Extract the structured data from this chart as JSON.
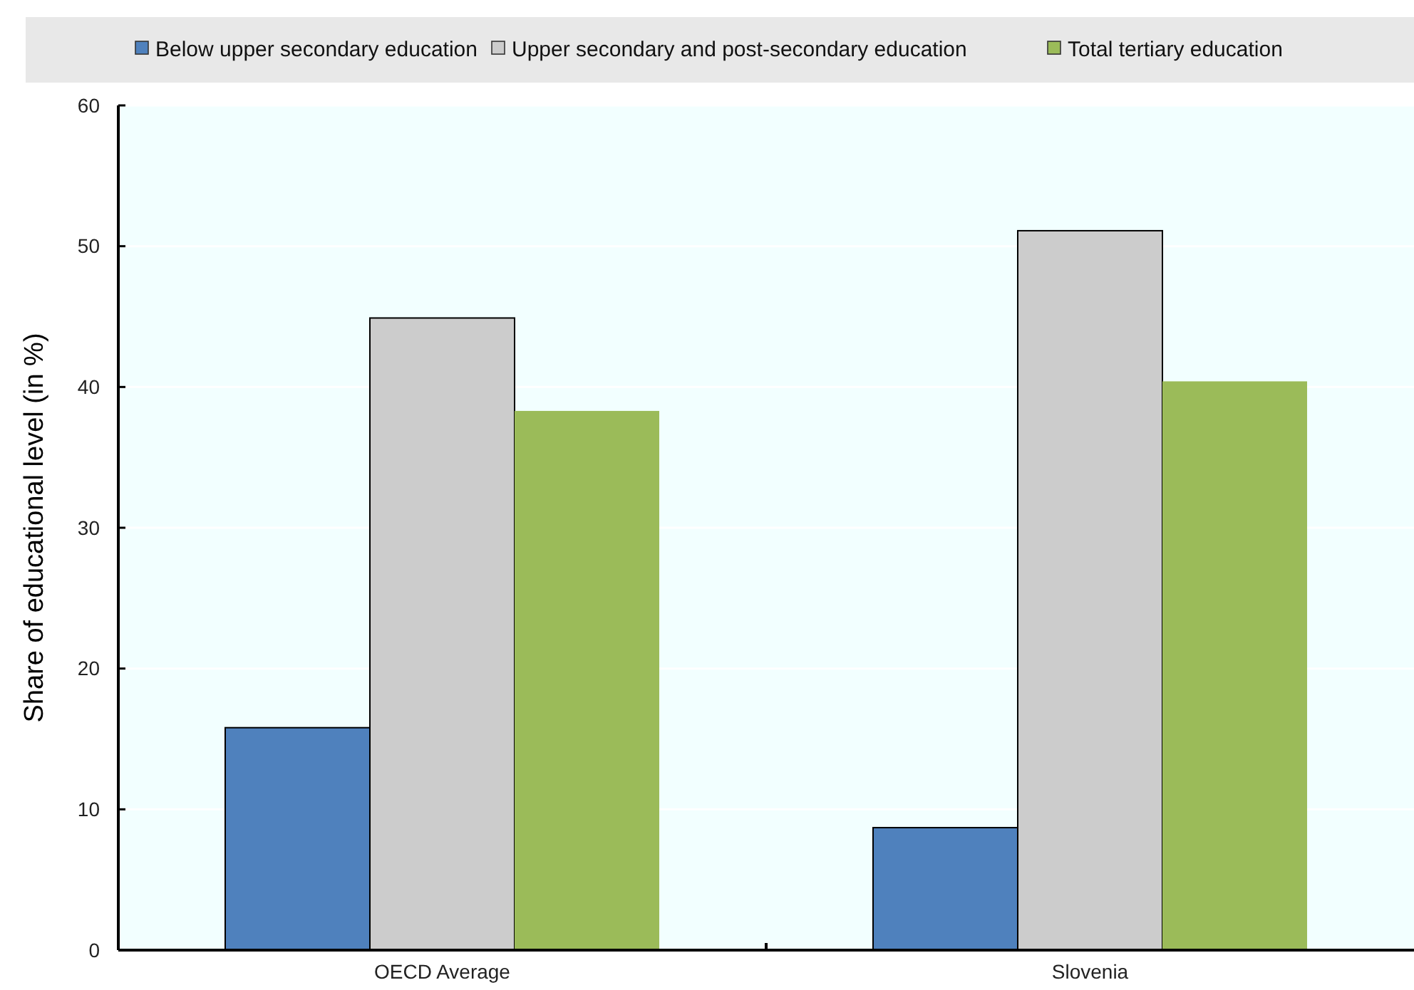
{
  "chart_data": {
    "type": "bar",
    "ylabel": "Share of educational level (in %)",
    "categories": [
      "OECD Average",
      "Slovenia"
    ],
    "series": [
      {
        "name": "Below upper secondary education",
        "color": "#4f81bd",
        "values": [
          15.8,
          8.7
        ]
      },
      {
        "name": "Upper secondary and post-secondary education",
        "color": "#cccccc",
        "values": [
          44.9,
          51.1
        ]
      },
      {
        "name": "Total tertiary education",
        "color": "#9bbb59",
        "values": [
          38.3,
          40.4
        ]
      }
    ],
    "ylim": [
      0,
      60
    ],
    "yticks": [
      0,
      10,
      20,
      30,
      40,
      50,
      60
    ],
    "grid": "y",
    "legend": "top"
  }
}
